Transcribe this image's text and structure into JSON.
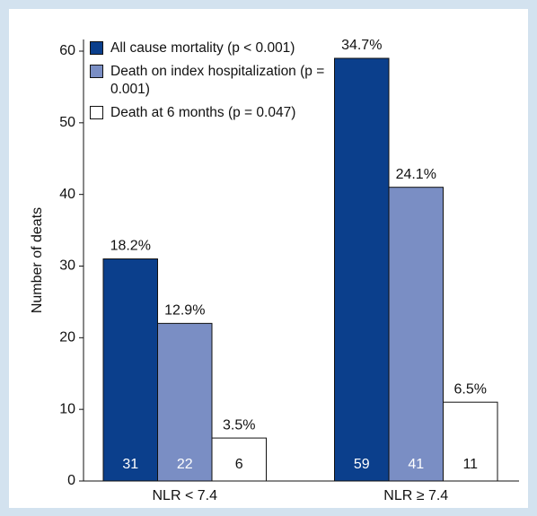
{
  "chart_data": {
    "type": "bar",
    "y_label": "Number of deats",
    "categories": [
      "NLR < 7.4",
      "NLR ≥ 7.4"
    ],
    "series": [
      {
        "name": "All cause mortality (p < 0.001)",
        "color": "#0b3f8c",
        "values": [
          31,
          59
        ],
        "percent_labels": [
          "18.2%",
          "34.7%"
        ]
      },
      {
        "name": "Death on index hospitalization (p = 0.001)",
        "color": "#7a8ec4",
        "values": [
          22,
          41
        ],
        "percent_labels": [
          "12.9%",
          "24.1%"
        ]
      },
      {
        "name": "Death at 6 months (p = 0.047)",
        "color": "#ffffff",
        "values": [
          6,
          11
        ],
        "percent_labels": [
          "3.5%",
          "6.5%"
        ]
      }
    ],
    "ylim": [
      0,
      60
    ],
    "yticks": [
      0,
      10,
      20,
      30,
      40,
      50,
      60
    ],
    "legend": "upper left"
  }
}
